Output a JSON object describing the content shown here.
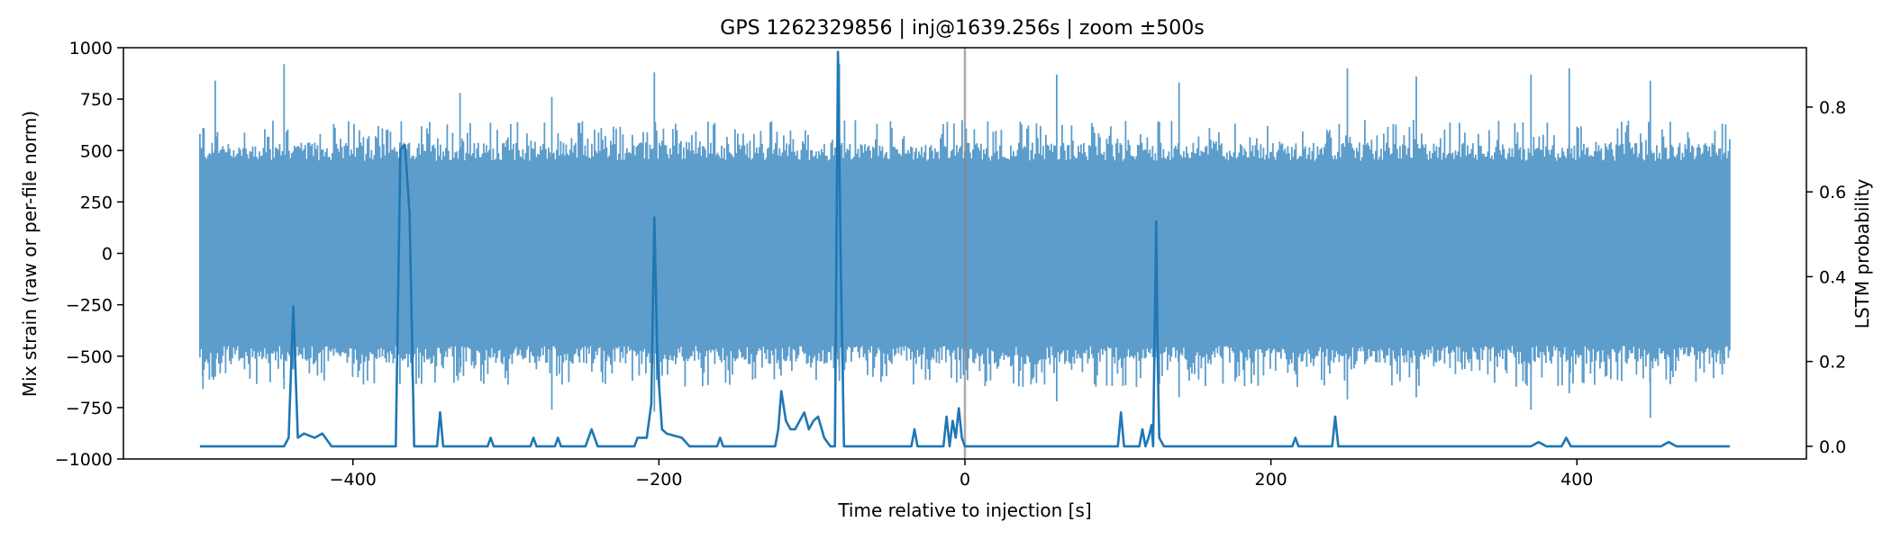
{
  "chart_data": {
    "type": "line",
    "title": "GPS 1262329856 | inj@1639.256s | zoom ±500s",
    "xlabel": "Time relative to injection [s]",
    "ylabel": "Mix strain (raw or per-file norm)",
    "y2label": "LSTM probability",
    "xlim": [
      -550,
      550
    ],
    "ylim": [
      -1000,
      1000
    ],
    "y2lim": [
      -0.03,
      0.94
    ],
    "xticks": [
      -400,
      -200,
      0,
      200,
      400
    ],
    "xtick_labels": [
      "−400",
      "−200",
      "0",
      "200",
      "400"
    ],
    "yticks": [
      1000,
      750,
      500,
      250,
      0,
      -250,
      -500,
      -750,
      -1000
    ],
    "ytick_labels": [
      "1000",
      "750",
      "500",
      "250",
      "0",
      "−250",
      "−500",
      "−750",
      "−1000"
    ],
    "y2ticks": [
      0.8,
      0.6,
      0.4,
      0.2,
      0.0
    ],
    "y2tick_labels": [
      "0.8",
      "0.6",
      "0.4",
      "0.2",
      "0.0"
    ],
    "injection_time": 0,
    "grid": false,
    "legend": "none",
    "strain_envelope": {
      "x_range": [
        -500,
        500
      ],
      "core_upper": 450,
      "core_lower": -450,
      "typical_peak_max": 650,
      "typical_peak_min": -650,
      "extreme_peaks": [
        {
          "x": -498,
          "max": 610,
          "min": -660
        },
        {
          "x": -490,
          "max": 840,
          "min": -600
        },
        {
          "x": -445,
          "max": 920,
          "min": -660
        },
        {
          "x": -330,
          "max": 780,
          "min": -580
        },
        {
          "x": -270,
          "max": 760,
          "min": -760
        },
        {
          "x": -203,
          "max": 880,
          "min": -770
        },
        {
          "x": -82,
          "max": 920,
          "min": -620
        },
        {
          "x": 60,
          "max": 870,
          "min": -720
        },
        {
          "x": 140,
          "max": 830,
          "min": -700
        },
        {
          "x": 250,
          "max": 900,
          "min": -710
        },
        {
          "x": 295,
          "max": 860,
          "min": -700
        },
        {
          "x": 370,
          "max": 870,
          "min": -760
        },
        {
          "x": 395,
          "max": 900,
          "min": -680
        },
        {
          "x": 448,
          "max": 840,
          "min": -800
        },
        {
          "x": 495,
          "max": 630,
          "min": -590
        }
      ]
    },
    "series": [
      {
        "name": "LSTM probability",
        "axis": "right",
        "color": "#1f77b4",
        "x": [
          -500,
          -445,
          -442,
          -439,
          -436,
          -432,
          -425,
          -420,
          -414,
          -410,
          -372,
          -369,
          -366,
          -363,
          -360,
          -345,
          -343,
          -341,
          -312,
          -310,
          -308,
          -284,
          -282,
          -280,
          -268,
          -266,
          -264,
          -248,
          -244,
          -240,
          -236,
          -216,
          -214,
          -208,
          -205,
          -203,
          -201,
          -198,
          -195,
          -185,
          -180,
          -162,
          -160,
          -158,
          -135,
          -124,
          -122,
          -120,
          -117,
          -114,
          -111,
          -108,
          -105,
          -102,
          -99,
          -96,
          -92,
          -88,
          -85,
          -83,
          -81,
          -79,
          -77,
          -50,
          -35,
          -33,
          -31,
          -14,
          -12,
          -10,
          -8,
          -6,
          -4,
          -2,
          0,
          60,
          100,
          102,
          104,
          114,
          116,
          118,
          120,
          122,
          123,
          125,
          126,
          127,
          130,
          140,
          200,
          214,
          216,
          218,
          240,
          242,
          244,
          300,
          370,
          375,
          380,
          390,
          393,
          396,
          455,
          460,
          465,
          500
        ],
        "values": [
          0.0,
          0.0,
          0.02,
          0.33,
          0.02,
          0.03,
          0.02,
          0.03,
          0.0,
          0.0,
          0.0,
          0.7,
          0.71,
          0.55,
          0.0,
          0.0,
          0.08,
          0.0,
          0.0,
          0.02,
          0.0,
          0.0,
          0.02,
          0.0,
          0.0,
          0.02,
          0.0,
          0.0,
          0.04,
          0.0,
          0.0,
          0.0,
          0.02,
          0.02,
          0.1,
          0.54,
          0.2,
          0.04,
          0.03,
          0.02,
          0.0,
          0.0,
          0.02,
          0.0,
          0.0,
          0.0,
          0.04,
          0.13,
          0.06,
          0.04,
          0.04,
          0.06,
          0.08,
          0.04,
          0.06,
          0.07,
          0.02,
          0.0,
          0.0,
          0.93,
          0.4,
          0.0,
          0.0,
          0.0,
          0.0,
          0.04,
          0.0,
          0.0,
          0.07,
          0.0,
          0.06,
          0.02,
          0.09,
          0.02,
          0.0,
          0.0,
          0.0,
          0.08,
          0.0,
          0.0,
          0.04,
          0.0,
          0.02,
          0.05,
          0.0,
          0.53,
          0.2,
          0.02,
          0.0,
          0.0,
          0.0,
          0.0,
          0.02,
          0.0,
          0.0,
          0.07,
          0.0,
          0.0,
          0.0,
          0.01,
          0.0,
          0.0,
          0.02,
          0.0,
          0.0,
          0.01,
          0.0,
          0.0
        ]
      }
    ]
  },
  "colors": {
    "strain": "#5d9dcb",
    "probability": "#1f77b4",
    "injection_line": "#888888"
  }
}
